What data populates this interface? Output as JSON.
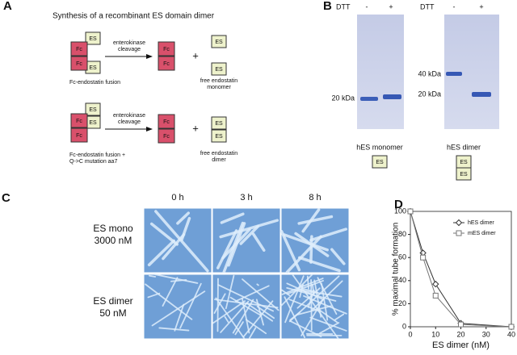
{
  "panel_a": {
    "label": "A",
    "title": "Synthesis of a recombinant ES domain dimer",
    "fc": "Fc",
    "es": "ES",
    "cleavage": [
      "enterokinase",
      "cleavage"
    ],
    "plus": "+",
    "row1": {
      "left": [
        "Fc-endostatin fusion"
      ],
      "right": [
        "free endostatin",
        "monomer"
      ]
    },
    "row2": {
      "left": [
        "Fc-endostatin fusion +",
        "Q->C mutation aa7"
      ],
      "right": [
        "free endostatin",
        "dimer"
      ]
    }
  },
  "panel_b": {
    "label": "B",
    "dtt": "DTT",
    "minus": "-",
    "plus": "+",
    "es": "ES",
    "gel1": {
      "markers": [
        "20 kDa"
      ],
      "caption": "hES monomer"
    },
    "gel2": {
      "markers": [
        "40 kDa",
        "20 kDa"
      ],
      "caption": "hES dimer"
    }
  },
  "panel_c": {
    "label": "C",
    "times": [
      "0 h",
      "3 h",
      "8 h"
    ],
    "rows": [
      [
        "ES mono",
        "3000 nM"
      ],
      [
        "ES dimer",
        "50 nM"
      ]
    ]
  },
  "chart_data": {
    "type": "line",
    "label": "D",
    "x_label": "ES dimer (nM)",
    "y_label": "% maximal tube formation",
    "x": [
      0,
      5,
      10,
      20,
      40
    ],
    "series": [
      {
        "name": "hES dimer",
        "color": "#333333",
        "marker": "diamond",
        "values": [
          100,
          64,
          37,
          3,
          0
        ]
      },
      {
        "name": "mES dimer",
        "color": "#777777",
        "marker": "square",
        "values": [
          100,
          60,
          27,
          2,
          0
        ]
      }
    ],
    "xlim": [
      0,
      40
    ],
    "xticks": [
      0,
      10,
      20,
      30,
      40
    ],
    "ylim": [
      0,
      100
    ],
    "yticks": [
      0,
      20,
      40,
      60,
      80,
      100
    ],
    "legend": "upper right"
  }
}
